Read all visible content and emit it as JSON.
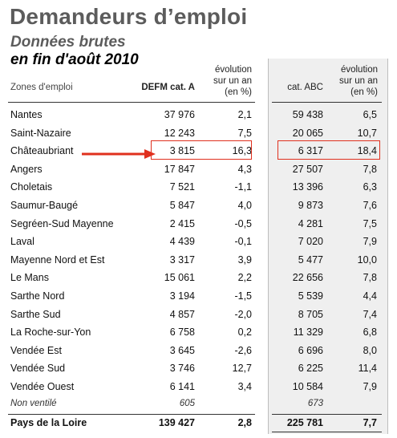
{
  "header": {
    "title": "Demandeurs d’emploi",
    "subtitle": "Données brutes",
    "date_line": "en fin d'août 2010"
  },
  "columns": {
    "zone": "Zones d'emploi",
    "defm": "DEFM cat. A",
    "evo1": [
      "évolution",
      "sur un an",
      "(en %)"
    ],
    "abc": "cat. ABC",
    "evo2": [
      "évolution",
      "sur un an",
      "(en %)"
    ]
  },
  "rows": [
    {
      "zone": "Nantes",
      "defm": "37 976",
      "evo1": "2,1",
      "abc": "59 438",
      "evo2": "6,5"
    },
    {
      "zone": "Saint-Nazaire",
      "defm": "12 243",
      "evo1": "7,5",
      "abc": "20 065",
      "evo2": "10,7"
    },
    {
      "zone": "Châteaubriant",
      "defm": "3 815",
      "evo1": "16,3",
      "abc": "6 317",
      "evo2": "18,4"
    },
    {
      "zone": "Angers",
      "defm": "17 847",
      "evo1": "4,3",
      "abc": "27 507",
      "evo2": "7,8"
    },
    {
      "zone": "Choletais",
      "defm": "7 521",
      "evo1": "-1,1",
      "abc": "13 396",
      "evo2": "6,3"
    },
    {
      "zone": "Saumur-Baugé",
      "defm": "5 847",
      "evo1": "4,0",
      "abc": "9 873",
      "evo2": "7,6"
    },
    {
      "zone": "Segréen-Sud Mayenne",
      "defm": "2 415",
      "evo1": "-0,5",
      "abc": "4 281",
      "evo2": "7,5"
    },
    {
      "zone": "Laval",
      "defm": "4 439",
      "evo1": "-0,1",
      "abc": "7 020",
      "evo2": "7,9"
    },
    {
      "zone": "Mayenne Nord et Est",
      "defm": "3 317",
      "evo1": "3,9",
      "abc": "5 477",
      "evo2": "10,0"
    },
    {
      "zone": "Le Mans",
      "defm": "15 061",
      "evo1": "2,2",
      "abc": "22 656",
      "evo2": "7,8"
    },
    {
      "zone": "Sarthe Nord",
      "defm": "3 194",
      "evo1": "-1,5",
      "abc": "5 539",
      "evo2": "4,4"
    },
    {
      "zone": "Sarthe Sud",
      "defm": "4 857",
      "evo1": "-2,0",
      "abc": "8 705",
      "evo2": "7,4"
    },
    {
      "zone": "La Roche-sur-Yon",
      "defm": "6 758",
      "evo1": "0,2",
      "abc": "11 329",
      "evo2": "6,8"
    },
    {
      "zone": "Vendée Est",
      "defm": "3 645",
      "evo1": "-2,6",
      "abc": "6 696",
      "evo2": "8,0"
    },
    {
      "zone": "Vendée Sud",
      "defm": "3 746",
      "evo1": "12,7",
      "abc": "6 225",
      "evo2": "11,4"
    },
    {
      "zone": "Vendée Ouest",
      "defm": "6 141",
      "evo1": "3,4",
      "abc": "10 584",
      "evo2": "7,9"
    }
  ],
  "unallocated": {
    "zone": "Non ventilé",
    "defm": "605",
    "evo1": "",
    "abc": "673",
    "evo2": ""
  },
  "total": {
    "zone": "Pays de la Loire",
    "defm": "139 427",
    "evo1": "2,8",
    "abc": "225 781",
    "evo2": "7,7"
  },
  "highlight_color": "#e0301e"
}
